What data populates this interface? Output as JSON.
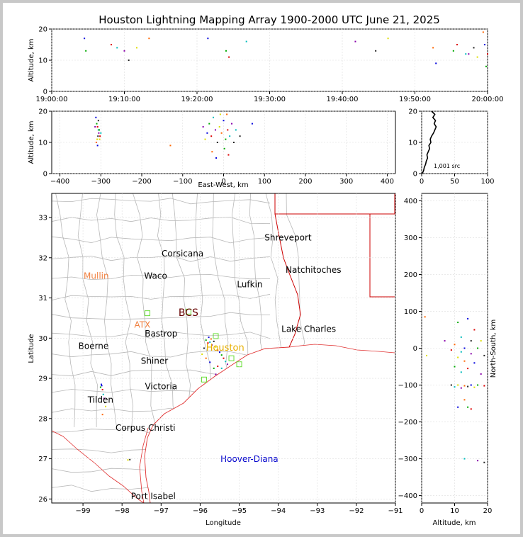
{
  "title": "Houston Lightning Mapping Array 1900-2000 UTC June 21, 2025",
  "colors": {
    "coast": "#e03030",
    "county": "#b8b8b8",
    "state": "#cc0000",
    "grid": "#d8d8d8"
  },
  "chart_data": [
    {
      "id": "time-altitude",
      "type": "scatter",
      "ylabel": "Altitude, km",
      "ylim": [
        0,
        20
      ],
      "yticks": [
        "0",
        "10",
        "20"
      ],
      "xlim_minutes": [
        0,
        60
      ],
      "xticks": [
        "19:00:00",
        "19:10:00",
        "19:20:00",
        "19:30:00",
        "19:40:00",
        "19:50:00",
        "20:00:00"
      ],
      "points": [
        [
          4.5,
          17
        ],
        [
          4.7,
          13
        ],
        [
          8.2,
          15
        ],
        [
          9.0,
          14
        ],
        [
          10.0,
          13
        ],
        [
          10.6,
          10
        ],
        [
          11.7,
          14
        ],
        [
          13.4,
          17
        ],
        [
          21.5,
          17
        ],
        [
          24.0,
          13
        ],
        [
          24.4,
          11
        ],
        [
          26.8,
          16
        ],
        [
          41.8,
          16
        ],
        [
          44.6,
          13
        ],
        [
          46.3,
          17
        ],
        [
          52.5,
          14
        ],
        [
          52.9,
          9
        ],
        [
          55.3,
          13
        ],
        [
          55.8,
          15
        ],
        [
          57.0,
          12
        ],
        [
          57.4,
          12
        ],
        [
          58.1,
          14
        ],
        [
          58.6,
          11
        ],
        [
          59.4,
          19
        ],
        [
          59.6,
          15
        ],
        [
          59.8,
          8
        ],
        [
          60.0,
          12
        ]
      ]
    },
    {
      "id": "ew-altitude",
      "type": "scatter",
      "xlabel": "East-West, km",
      "ylabel": "Altitude, km",
      "xlim": [
        -420,
        420
      ],
      "ylim": [
        0,
        20
      ],
      "xticks": [
        "−400",
        "−300",
        "−200",
        "−100",
        "0",
        "100",
        "200",
        "300",
        "400"
      ],
      "yticks": [
        "0",
        "10",
        "20"
      ],
      "points": [
        [
          -312,
          18
        ],
        [
          -310,
          16
        ],
        [
          -308,
          15
        ],
        [
          -306,
          14
        ],
        [
          -305,
          13
        ],
        [
          -307,
          12
        ],
        [
          -309,
          11
        ],
        [
          -311,
          10
        ],
        [
          -308,
          9
        ],
        [
          -304,
          14
        ],
        [
          -302,
          12
        ],
        [
          -300,
          13
        ],
        [
          -314,
          15
        ],
        [
          -306,
          17
        ],
        [
          -303,
          11
        ],
        [
          -130,
          9
        ],
        [
          -40,
          13
        ],
        [
          -35,
          16
        ],
        [
          -30,
          12
        ],
        [
          -25,
          18
        ],
        [
          -20,
          14
        ],
        [
          -15,
          10
        ],
        [
          -10,
          15
        ],
        [
          -5,
          13
        ],
        [
          0,
          17
        ],
        [
          5,
          11
        ],
        [
          10,
          14
        ],
        [
          15,
          12
        ],
        [
          20,
          16
        ],
        [
          25,
          10
        ],
        [
          -45,
          11
        ],
        [
          -28,
          7
        ],
        [
          -18,
          5
        ],
        [
          2,
          8
        ],
        [
          12,
          6
        ],
        [
          30,
          14
        ],
        [
          -50,
          15
        ],
        [
          40,
          12
        ],
        [
          -8,
          19
        ],
        [
          8,
          19
        ],
        [
          70,
          16
        ]
      ]
    },
    {
      "id": "altitude-histogram",
      "type": "line",
      "xlim": [
        0,
        100
      ],
      "ylim": [
        0,
        20
      ],
      "xticks": [
        "0",
        "50",
        "100"
      ],
      "yticks": [
        "0",
        "10",
        "20"
      ],
      "annotation": "1,001 src",
      "y": [
        0,
        1,
        2,
        3,
        4,
        5,
        6,
        7,
        8,
        9,
        10,
        11,
        12,
        13,
        14,
        15,
        16,
        17,
        18,
        19,
        20
      ],
      "x": [
        1,
        3,
        4,
        6,
        7,
        9,
        8,
        10,
        12,
        11,
        14,
        13,
        15,
        18,
        20,
        22,
        19,
        21,
        17,
        20,
        15
      ]
    },
    {
      "id": "map",
      "type": "scatter",
      "xlabel": "Longitude",
      "ylabel": "Latitude",
      "xlim": [
        -99.8,
        -91.0
      ],
      "ylim": [
        25.9,
        33.6
      ],
      "xticks": [
        "−99",
        "−98",
        "−97",
        "−96",
        "−95",
        "−94",
        "−93",
        "−92",
        "−91"
      ],
      "yticks": [
        "26",
        "27",
        "28",
        "29",
        "30",
        "31",
        "32",
        "33"
      ],
      "cities": [
        {
          "name": "Shreveport",
          "lon": -93.75,
          "lat": 32.5,
          "color": "#000000"
        },
        {
          "name": "Corsicana",
          "lon": -96.45,
          "lat": 32.1,
          "color": "#000000"
        },
        {
          "name": "Natchitoches",
          "lon": -93.1,
          "lat": 31.7,
          "color": "#000000"
        },
        {
          "name": "Mullin",
          "lon": -98.66,
          "lat": 31.55,
          "color": "#f08040"
        },
        {
          "name": "Waco",
          "lon": -97.14,
          "lat": 31.55,
          "color": "#000000"
        },
        {
          "name": "Lufkin",
          "lon": -94.73,
          "lat": 31.34,
          "color": "#000000"
        },
        {
          "name": "BCS",
          "lon": -96.3,
          "lat": 30.62,
          "color": "#660000"
        },
        {
          "name": "ATX",
          "lon": -97.48,
          "lat": 30.33,
          "color": "#f08040"
        },
        {
          "name": "Bastrop",
          "lon": -97.0,
          "lat": 30.11,
          "color": "#000000"
        },
        {
          "name": "Lake Charles",
          "lon": -93.22,
          "lat": 30.23,
          "color": "#000000"
        },
        {
          "name": "Boerne",
          "lon": -98.73,
          "lat": 29.8,
          "color": "#000000"
        },
        {
          "name": "Houston",
          "lon": -95.36,
          "lat": 29.76,
          "color": "#e8b000"
        },
        {
          "name": "Shiner",
          "lon": -97.17,
          "lat": 29.43,
          "color": "#000000"
        },
        {
          "name": "Victoria",
          "lon": -97.0,
          "lat": 28.8,
          "color": "#000000"
        },
        {
          "name": "Tilden",
          "lon": -98.55,
          "lat": 28.46,
          "color": "#000000"
        },
        {
          "name": "Corpus Christi",
          "lon": -97.4,
          "lat": 27.77,
          "color": "#000000"
        },
        {
          "name": "Hoover-Diana",
          "lon": -94.74,
          "lat": 26.99,
          "color": "#0000cc"
        },
        {
          "name": "Port Isabel",
          "lon": -97.2,
          "lat": 26.07,
          "color": "#000000"
        }
      ],
      "stations": [
        [
          -97.35,
          30.62
        ],
        [
          -96.3,
          30.66
        ],
        [
          -95.6,
          30.05
        ],
        [
          -95.0,
          29.35
        ],
        [
          -95.2,
          29.5
        ],
        [
          -95.9,
          28.97
        ]
      ],
      "points": [
        [
          -98.52,
          28.82
        ],
        [
          -98.55,
          28.78
        ],
        [
          -98.5,
          28.72
        ],
        [
          -98.48,
          28.6
        ],
        [
          -98.46,
          28.5
        ],
        [
          -98.44,
          28.4
        ],
        [
          -98.42,
          28.3
        ],
        [
          -98.5,
          28.1
        ],
        [
          -98.53,
          28.85
        ],
        [
          -95.85,
          29.95
        ],
        [
          -95.8,
          29.88
        ],
        [
          -95.75,
          29.9
        ],
        [
          -95.7,
          29.83
        ],
        [
          -95.65,
          29.92
        ],
        [
          -95.6,
          29.78
        ],
        [
          -95.55,
          29.7
        ],
        [
          -95.5,
          29.65
        ],
        [
          -95.45,
          29.58
        ],
        [
          -95.4,
          29.5
        ],
        [
          -95.35,
          29.42
        ],
        [
          -95.3,
          29.35
        ],
        [
          -95.9,
          29.75
        ],
        [
          -95.95,
          29.6
        ],
        [
          -95.85,
          29.5
        ],
        [
          -95.75,
          29.4
        ],
        [
          -95.65,
          29.25
        ],
        [
          -95.55,
          29.3
        ],
        [
          -95.45,
          29.25
        ],
        [
          -95.6,
          29.1
        ],
        [
          -97.8,
          26.98
        ],
        [
          -97.85,
          26.97
        ],
        [
          -95.72,
          29.98
        ],
        [
          -95.78,
          30.02
        ]
      ]
    },
    {
      "id": "altitude-ns",
      "type": "scatter",
      "xlabel": "Altitude, km",
      "ylabel": "North-South, km",
      "xlim": [
        0,
        20
      ],
      "ylim": [
        -420,
        420
      ],
      "xticks": [
        "0",
        "10",
        "20"
      ],
      "yticks": [
        "−400",
        "−300",
        "−200",
        "−100",
        "0",
        "100",
        "200",
        "300",
        "400"
      ],
      "points": [
        [
          14,
          80
        ],
        [
          11,
          70
        ],
        [
          16,
          50
        ],
        [
          12,
          30
        ],
        [
          7,
          20
        ],
        [
          15,
          20
        ],
        [
          18,
          20
        ],
        [
          10,
          10
        ],
        [
          13,
          0
        ],
        [
          17,
          0
        ],
        [
          9,
          -5
        ],
        [
          12,
          -10
        ],
        [
          15,
          -15
        ],
        [
          19,
          -20
        ],
        [
          11,
          -25
        ],
        [
          13,
          -35
        ],
        [
          16,
          -40
        ],
        [
          10,
          -50
        ],
        [
          14,
          -55
        ],
        [
          12,
          -65
        ],
        [
          18,
          -70
        ],
        [
          9,
          -100
        ],
        [
          11,
          -100
        ],
        [
          13,
          -102
        ],
        [
          15,
          -100
        ],
        [
          17,
          -100
        ],
        [
          19,
          -102
        ],
        [
          10,
          -105
        ],
        [
          12,
          -108
        ],
        [
          14,
          -104
        ],
        [
          16,
          -106
        ],
        [
          13,
          -140
        ],
        [
          11,
          -160
        ],
        [
          14,
          -160
        ],
        [
          15,
          -165
        ],
        [
          13,
          -300
        ],
        [
          17,
          -305
        ],
        [
          19,
          -310
        ],
        [
          1.5,
          -20
        ],
        [
          1,
          85
        ]
      ]
    }
  ]
}
